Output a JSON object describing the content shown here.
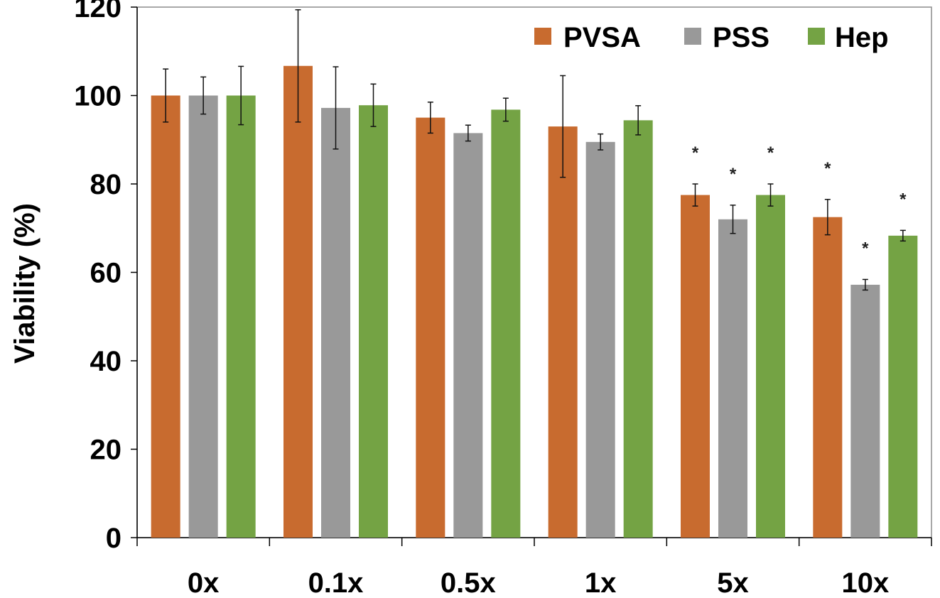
{
  "chart_data": {
    "type": "bar",
    "title": "",
    "xlabel": "",
    "ylabel": "Viability (%)",
    "ylim": [
      0,
      120
    ],
    "yticks": [
      0,
      20,
      40,
      60,
      80,
      100,
      120
    ],
    "grid": false,
    "legend_position": "top-right",
    "categories": [
      "0x",
      "0.1x",
      "0.5x",
      "1x",
      "5x",
      "10x"
    ],
    "series": [
      {
        "name": "PVSA",
        "color": "#c86b2f",
        "values": [
          100,
          106.7,
          95,
          93,
          77.5,
          72.5
        ],
        "errors": [
          6,
          12.7,
          3.5,
          11.5,
          2.5,
          4
        ],
        "significance": [
          "",
          "",
          "",
          "",
          "*",
          "*"
        ]
      },
      {
        "name": "PSS",
        "color": "#999999",
        "values": [
          100,
          97.2,
          91.5,
          89.5,
          72,
          57.2
        ],
        "errors": [
          4.2,
          9.3,
          1.8,
          1.8,
          3.2,
          1.2
        ],
        "significance": [
          "",
          "",
          "",
          "",
          "*",
          "*"
        ]
      },
      {
        "name": "Hep",
        "color": "#74a344",
        "values": [
          100,
          97.8,
          96.8,
          94.4,
          77.5,
          68.3
        ],
        "errors": [
          6.6,
          4.8,
          2.6,
          3.3,
          2.5,
          1.2
        ],
        "significance": [
          "",
          "",
          "",
          "",
          "*",
          "*"
        ]
      }
    ]
  }
}
